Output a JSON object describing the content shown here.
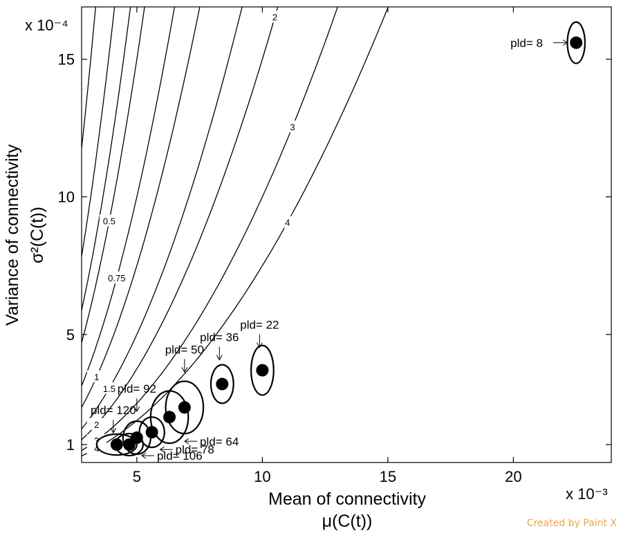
{
  "chart_data": {
    "type": "scatter",
    "xlabel": "Mean of connectivity",
    "xlabel_symbol": "μ(C(t))",
    "ylabel": "Variance of connectivity",
    "ylabel_symbol": "σ²(C(t))",
    "x_multiplier": "x 10⁻³",
    "y_multiplier": "x 10⁻⁴",
    "xlim": [
      2.8,
      23.9
    ],
    "ylim": [
      0.35,
      16.9
    ],
    "x_ticks": [
      5,
      10,
      15,
      20
    ],
    "y_ticks": [
      1,
      5,
      10,
      15
    ],
    "contours": {
      "levels": [
        {
          "k": 0.2,
          "labels": []
        },
        {
          "k": 0.3,
          "labels": []
        },
        {
          "k": 0.4,
          "labels": []
        },
        {
          "k": 0.5,
          "labels": [
            {
              "text": "0.5",
              "x": 3.9
            },
            {
              "text": "0.5",
              "x": 10.2
            }
          ]
        },
        {
          "k": 0.75,
          "labels": [
            {
              "text": "0.75",
              "x": 4.2
            },
            {
              "text": "0.75",
              "x": 11.2
            }
          ]
        },
        {
          "k": 1,
          "labels": [
            {
              "text": "1",
              "x": 3.4
            },
            {
              "text": "1",
              "x": 10.3
            },
            {
              "text": "1",
              "x": 16.0
            }
          ]
        },
        {
          "k": 1.5,
          "labels": [
            {
              "text": "1.5",
              "x": 3.9
            },
            {
              "text": "1.5",
              "x": 11.2
            },
            {
              "text": "1.5",
              "x": 16.9
            }
          ]
        },
        {
          "k": 2,
          "labels": [
            {
              "text": "2",
              "x": 3.4
            },
            {
              "text": "2",
              "x": 10.5
            },
            {
              "text": "2",
              "x": 17.0
            },
            {
              "text": "2",
              "x": 20.9
            }
          ]
        },
        {
          "k": 3,
          "labels": [
            {
              "text": "3",
              "x": 3.4
            },
            {
              "text": "3",
              "x": 11.2
            },
            {
              "text": "3",
              "x": 17.6
            },
            {
              "text": "3",
              "x": 22.4
            }
          ]
        },
        {
          "k": 4,
          "labels": [
            {
              "text": "4",
              "x": 3.4
            },
            {
              "text": "4",
              "x": 11.0
            },
            {
              "text": "4",
              "x": 17.2
            },
            {
              "text": "4",
              "x": 23.3
            }
          ]
        }
      ]
    },
    "points": [
      {
        "label": "pld= 8",
        "x": 22.5,
        "y": 15.6,
        "rx": 0.35,
        "ry": 0.75
      },
      {
        "label": "pld= 22",
        "x": 10.0,
        "y": 3.7,
        "rx": 0.45,
        "ry": 0.9
      },
      {
        "label": "pld= 36",
        "x": 8.4,
        "y": 3.2,
        "rx": 0.45,
        "ry": 0.7
      },
      {
        "label": "pld= 50",
        "x": 6.9,
        "y": 2.35,
        "rx": 0.75,
        "ry": 0.95
      },
      {
        "label": "pld= 64",
        "x": 6.3,
        "y": 2.0,
        "rx": 0.75,
        "ry": 0.95
      },
      {
        "label": "pld= 78",
        "x": 5.6,
        "y": 1.45,
        "rx": 0.5,
        "ry": 0.55
      },
      {
        "label": "pld= 92",
        "x": 5.0,
        "y": 1.25,
        "rx": 0.55,
        "ry": 0.6
      },
      {
        "label": "pld= 106",
        "x": 4.7,
        "y": 1.0,
        "rx": 0.55,
        "ry": 0.4
      },
      {
        "label": "pld= 120",
        "x": 4.2,
        "y": 1.0,
        "rx": 0.8,
        "ry": 0.38
      }
    ]
  },
  "credit": "Created by Paint X"
}
